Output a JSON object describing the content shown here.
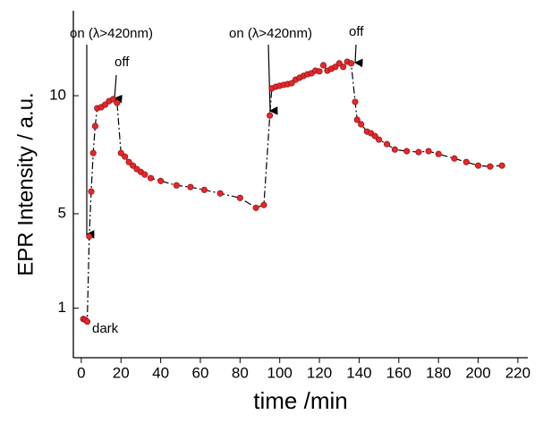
{
  "chart_data": {
    "type": "scatter",
    "xlabel": "time /min",
    "ylabel": "EPR Intensity / a.u.",
    "annotations": [
      "on (λ>420nm)",
      "off",
      "on (λ>420nm)",
      "off",
      "dark"
    ],
    "x": [
      1,
      2,
      3,
      4,
      5,
      6,
      7,
      8,
      10,
      12,
      14,
      16,
      18,
      20,
      22,
      24,
      26,
      28,
      30,
      32,
      35,
      40,
      48,
      55,
      62,
      70,
      80,
      88,
      92,
      95,
      96,
      98,
      100,
      102,
      104,
      106,
      108,
      110,
      112,
      114,
      116,
      118,
      120,
      122,
      124,
      126,
      128,
      130,
      132,
      134,
      136,
      138,
      139,
      141,
      144,
      146,
      148,
      150,
      154,
      158,
      164,
      170,
      175,
      180,
      188,
      194,
      200,
      206,
      212
    ],
    "series": [
      {
        "color": "#e8262a",
        "values": [
          0.54,
          0.51,
          0.43,
          4.04,
          5.94,
          7.57,
          8.71,
          9.47,
          9.51,
          9.62,
          9.77,
          9.85,
          9.7,
          7.57,
          7.42,
          7.19,
          7.04,
          6.89,
          6.77,
          6.66,
          6.51,
          6.39,
          6.2,
          6.13,
          6.01,
          5.86,
          5.67,
          5.25,
          5.37,
          9.16,
          10.31,
          10.38,
          10.42,
          10.46,
          10.49,
          10.53,
          10.68,
          10.76,
          10.84,
          10.91,
          10.95,
          11.06,
          11.03,
          11.29,
          11.06,
          11.14,
          11.22,
          11.37,
          11.22,
          11.44,
          11.37,
          9.74,
          8.98,
          8.79,
          8.48,
          8.41,
          8.29,
          8.14,
          7.95,
          7.72,
          7.65,
          7.61,
          7.65,
          7.53,
          7.34,
          7.19,
          7.04,
          7.0,
          7.04
        ]
      }
    ],
    "xlim": [
      -4,
      225
    ],
    "xticks": [
      0,
      20,
      40,
      60,
      80,
      100,
      120,
      140,
      160,
      180,
      200,
      220
    ],
    "ylim": [
      -1.1,
      13.6
    ],
    "yticks": [
      1,
      5,
      10
    ]
  }
}
